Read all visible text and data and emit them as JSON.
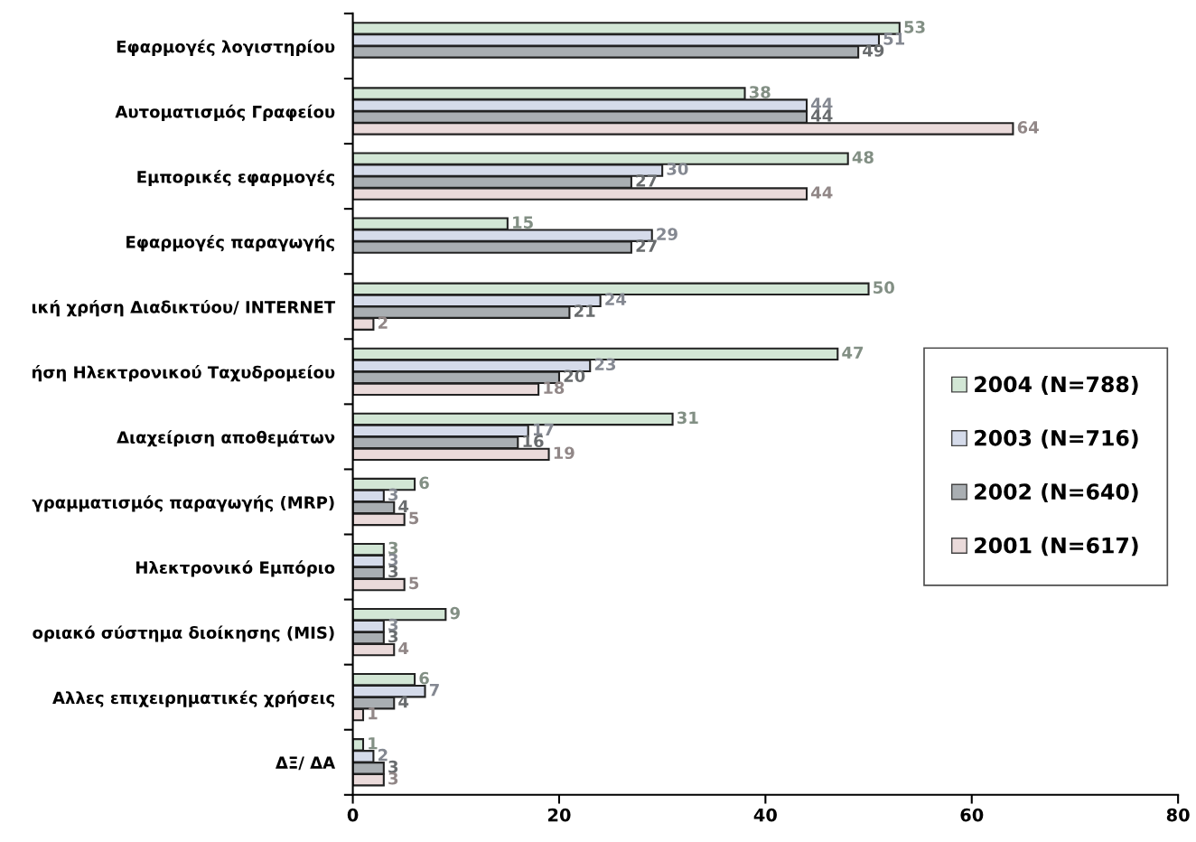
{
  "chart_data": {
    "type": "bar",
    "orientation": "horizontal",
    "categories": [
      "Εφαρμογές λογιστηρίου",
      "Αυτοματισμός Γραφείου",
      "Εμπορικές εφαρμογές",
      "Εφαρμογές παραγωγής",
      "ική χρήση Διαδικτύου/ INTERNET",
      "ήση Ηλεκτρονικού Ταχυδρομείου",
      "Διαχείριση αποθεμάτων",
      "γραμματισμός παραγωγής (MRP)",
      "Ηλεκτρονικό Εμπόριο",
      "οριακό σύστημα διοίκησης (MIS)",
      "Αλλες επιχειρηματικές χρήσεις",
      "ΔΞ/ ΔΑ"
    ],
    "series": [
      {
        "name": "2004 (N=788)",
        "color": "#d2e6d5",
        "values": [
          53,
          38,
          48,
          15,
          50,
          47,
          31,
          6,
          3,
          9,
          6,
          1
        ]
      },
      {
        "name": "2003 (N=716)",
        "color": "#d5dbea",
        "values": [
          51,
          44,
          30,
          29,
          24,
          23,
          17,
          3,
          3,
          3,
          7,
          2
        ]
      },
      {
        "name": "2002 (N=640)",
        "color": "#a9aeb2",
        "values": [
          49,
          44,
          27,
          27,
          21,
          20,
          16,
          4,
          3,
          3,
          4,
          3
        ]
      },
      {
        "name": "2001 (N=617)",
        "color": "#eadada",
        "values": [
          null,
          64,
          44,
          null,
          2,
          18,
          19,
          5,
          5,
          4,
          1,
          3
        ]
      }
    ],
    "xlim": [
      0,
      80
    ],
    "xticks": [
      0,
      20,
      40,
      60,
      80
    ],
    "data_labels": true,
    "grid": false,
    "legend": "right"
  }
}
